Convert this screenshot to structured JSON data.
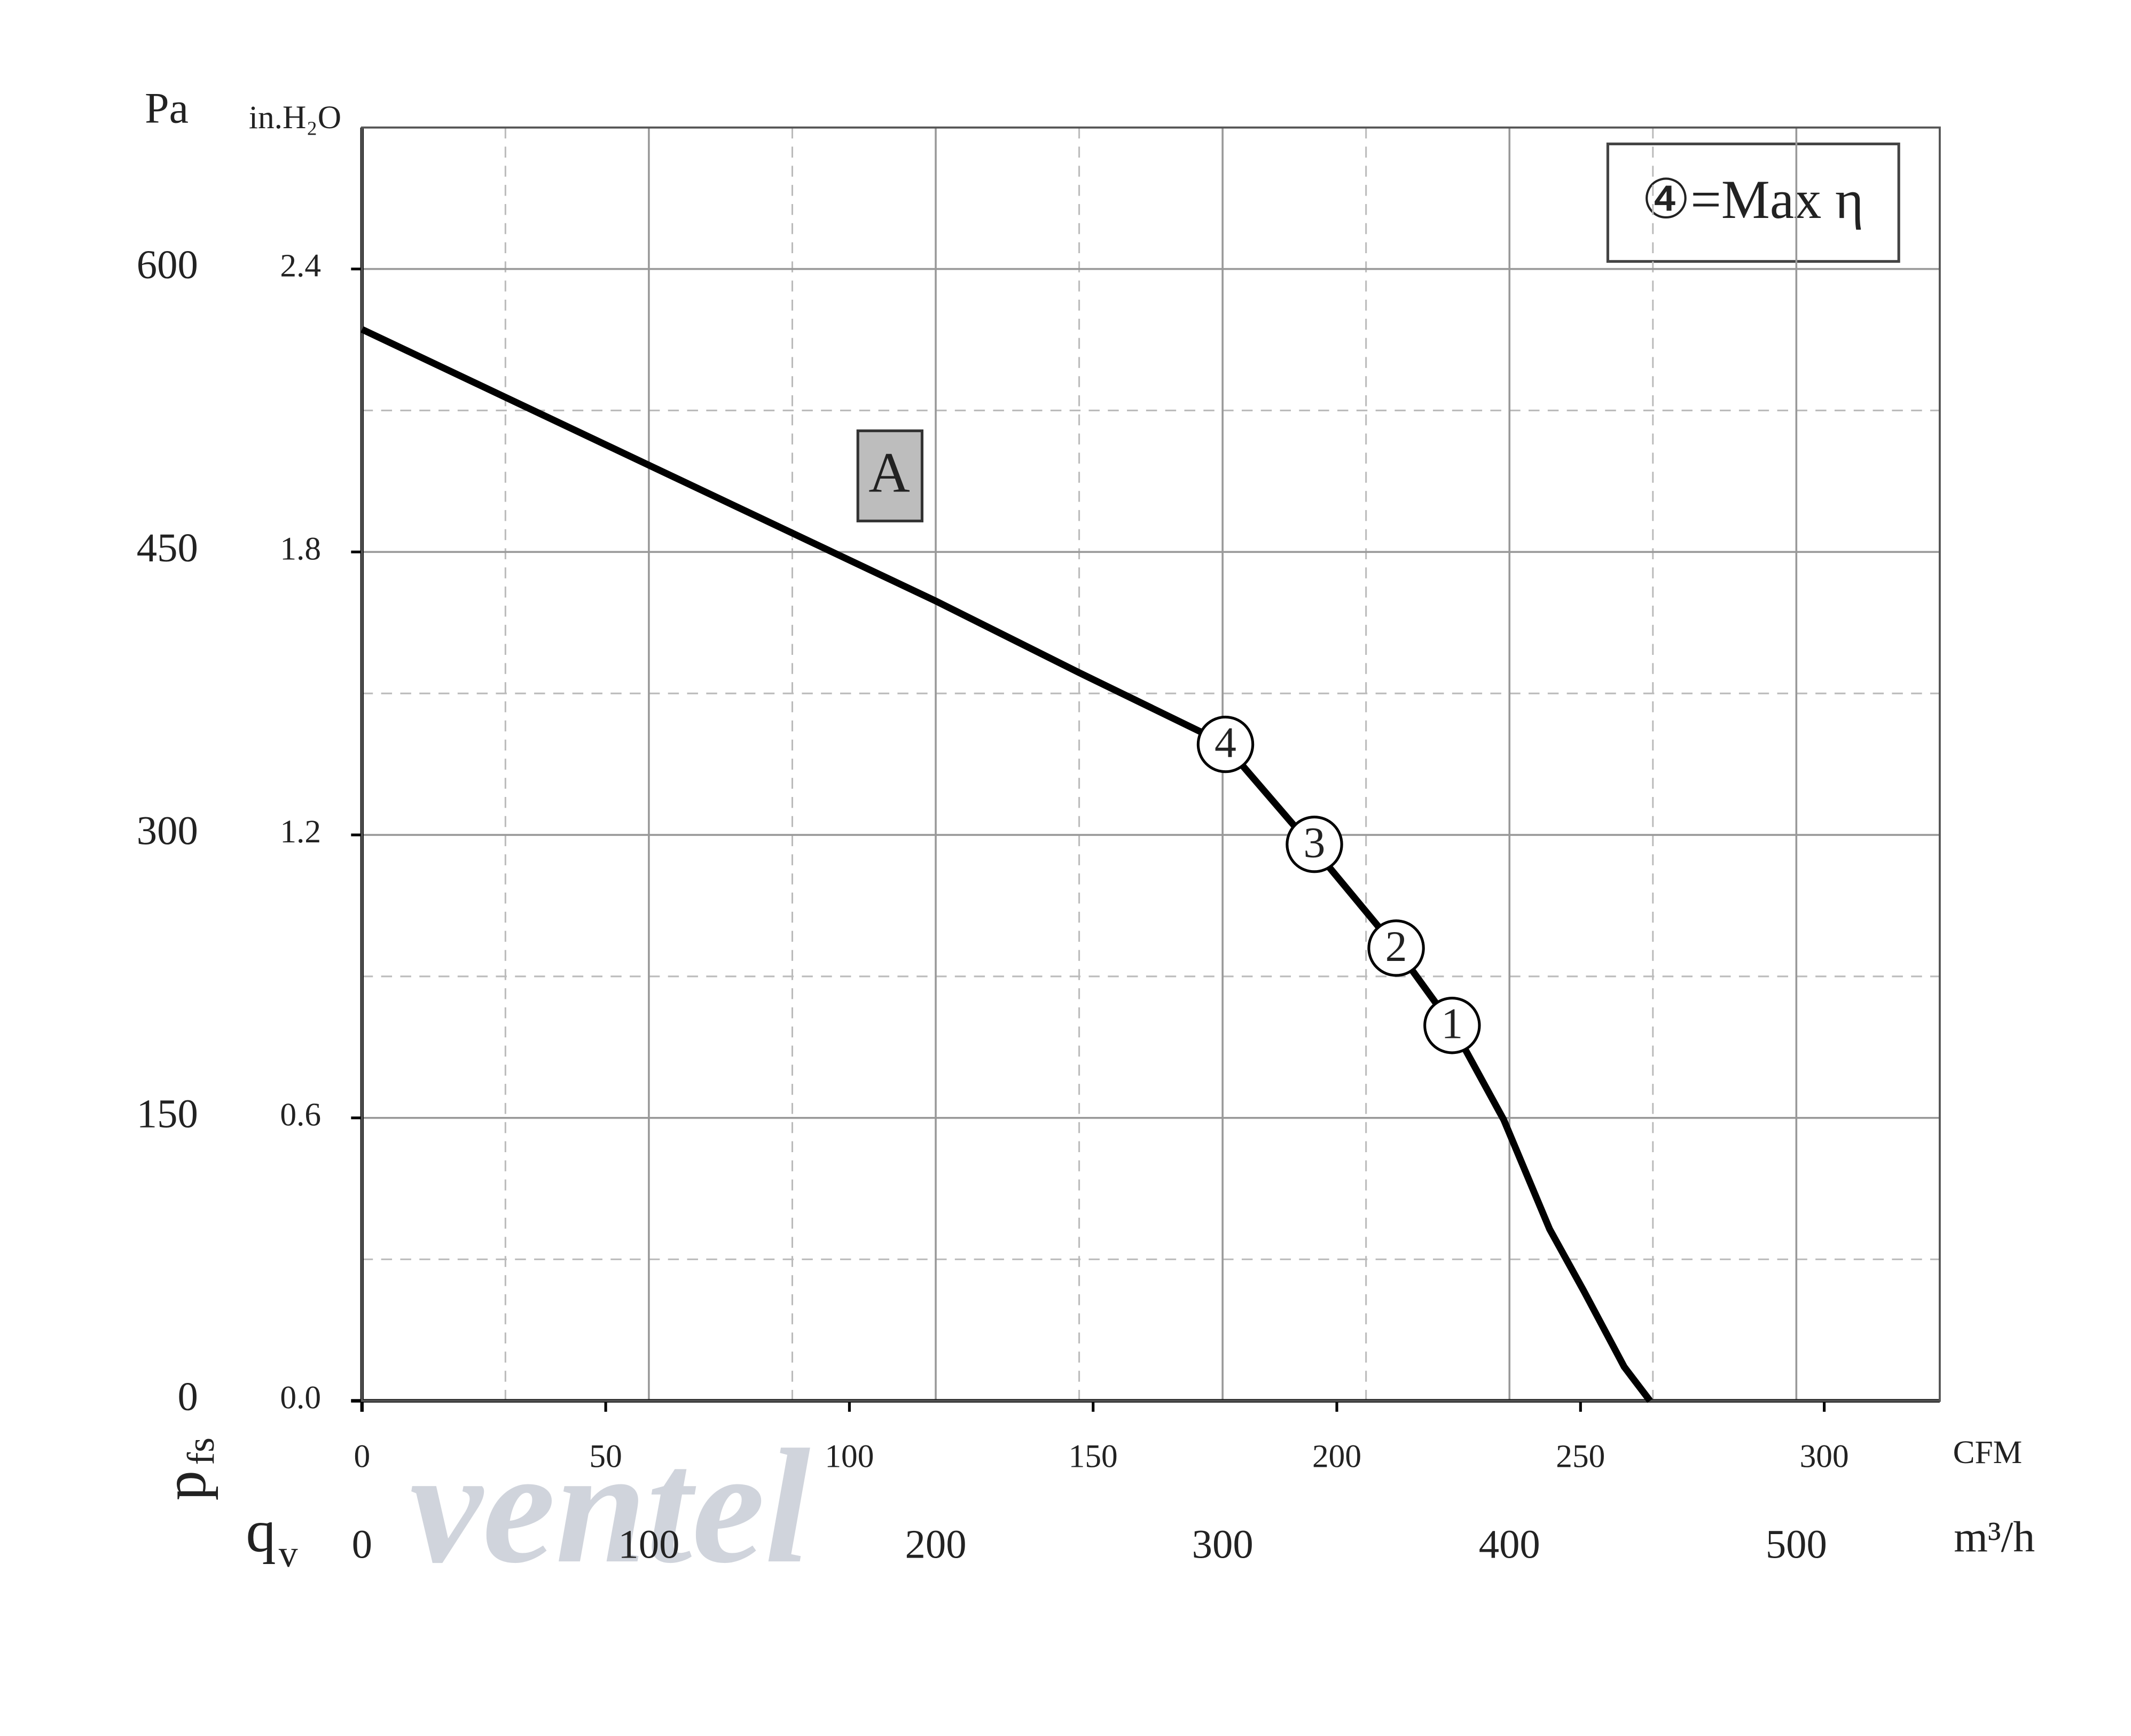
{
  "chart_data": {
    "type": "line",
    "legend_text": "④=Max η",
    "watermark": "ventel",
    "xlabel": "m³/h",
    "x2label": "CFM",
    "ylabel_left": "Pa",
    "y2label": "in.H₂O",
    "axis_symbol_y": "p",
    "axis_symbol_y_sub": "fs",
    "axis_symbol_x": "q",
    "axis_symbol_x_sub": "v",
    "xlim": [
      0,
      550
    ],
    "xticks": [
      0,
      100,
      200,
      300,
      400,
      500
    ],
    "xminor": [
      50,
      150,
      250,
      350,
      450
    ],
    "x2lim": [
      0,
      323.7
    ],
    "x2ticks": [
      0,
      50,
      100,
      150,
      200,
      250,
      300
    ],
    "ylim": [
      0,
      675
    ],
    "yticks": [
      0,
      150,
      300,
      450,
      600
    ],
    "yminor": [
      75,
      225,
      375,
      525
    ],
    "y2lim": [
      0,
      2.7
    ],
    "y2ticks": [
      {
        "value": 0,
        "label": "0.0"
      },
      0.6,
      1.2,
      1.8,
      2.4
    ],
    "grid": true,
    "series": [
      {
        "name": "A",
        "color": "#000000",
        "x": [
          0,
          50,
          100,
          150,
          200,
          250,
          300,
          330,
          360,
          380,
          398,
          414,
          426,
          440,
          449
        ],
        "values": [
          568,
          532,
          496,
          460,
          424,
          386,
          349,
          296,
          241,
          199,
          149,
          91,
          58,
          18,
          0
        ]
      }
    ],
    "points": [
      {
        "label": "4",
        "x": 301,
        "y": 348
      },
      {
        "label": "3",
        "x": 332,
        "y": 295
      },
      {
        "label": "2",
        "x": 360.5,
        "y": 240
      },
      {
        "label": "1",
        "x": 380,
        "y": 199
      }
    ]
  }
}
